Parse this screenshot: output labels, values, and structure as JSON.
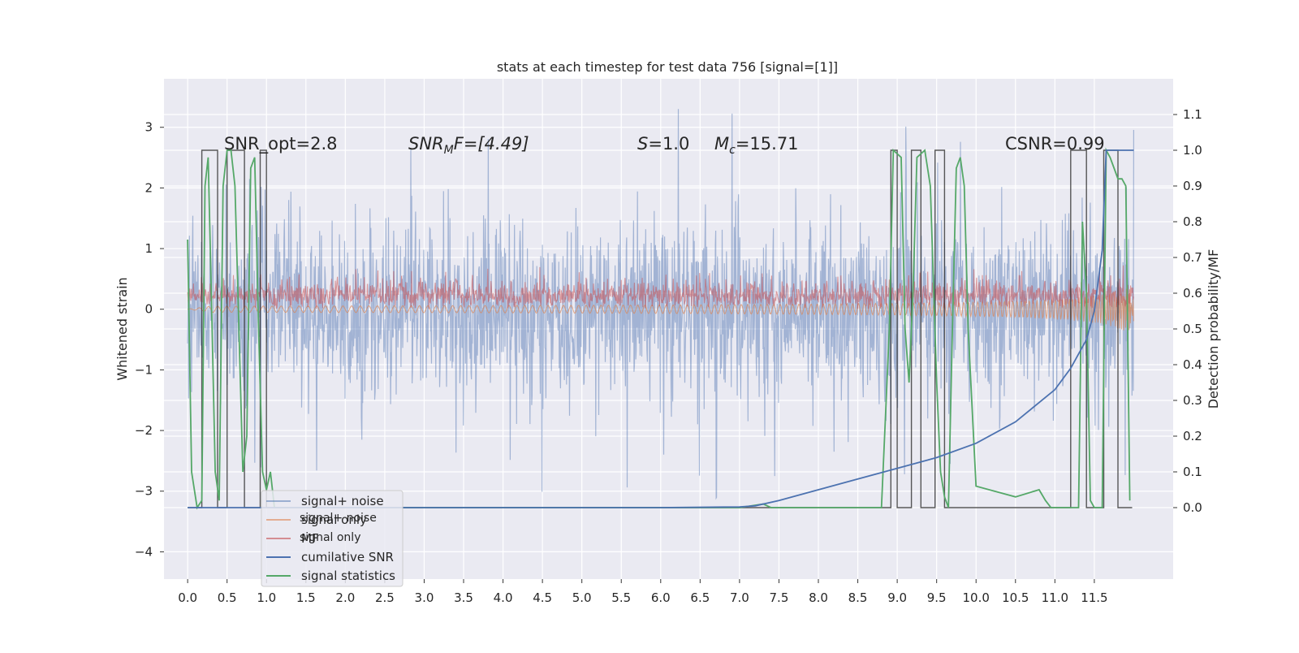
{
  "chart_data": {
    "type": "line",
    "title": "stats at each timestep for test data 756 [signal=[1]]",
    "xlabel": "",
    "ylabel_left": "Whitened strain",
    "ylabel_right": "Detection probability/MF",
    "xlim": [
      -0.3,
      12.5
    ],
    "ylim_left": [
      -4.45,
      3.8
    ],
    "ylim_right": [
      -0.2,
      1.2
    ],
    "x_ticks": [
      "0.0",
      "0.5",
      "1.0",
      "1.5",
      "2.0",
      "2.5",
      "3.0",
      "3.5",
      "4.0",
      "4.5",
      "5.0",
      "5.5",
      "6.0",
      "6.5",
      "7.0",
      "7.5",
      "8.0",
      "8.5",
      "9.0",
      "9.5",
      "10.0",
      "10.5",
      "11.0",
      "11.5"
    ],
    "y_ticks_left": [
      "3",
      "2",
      "1",
      "0",
      "−1",
      "−2",
      "−3",
      "−4"
    ],
    "y_ticks_right": [
      "1.1",
      "1.0",
      "0.9",
      "0.8",
      "0.7",
      "0.6",
      "0.5",
      "0.4",
      "0.3",
      "0.2",
      "0.1",
      "0.0"
    ],
    "grid": true,
    "legend_position": "lower-left",
    "background": "#eaeaf2",
    "annotations": {
      "snr_opt": "SNR_opt=2.8",
      "snr_mf_prefix": "SNR",
      "snr_mf_sub": "M",
      "snr_mf_rest": "F=[4.49]",
      "s_italic": "S",
      "s_value": "=1.0",
      "mc_italic": "M",
      "mc_sub": "c",
      "mc_value": "=15.71",
      "csnr": "CSNR=0.99"
    },
    "series": [
      {
        "name": "signal+ noise",
        "color": "#4c72b0",
        "axis": "left",
        "style": "noisy band",
        "approx_range": [
          -2.3,
          2.6
        ],
        "x_range": [
          0.0,
          12.0
        ]
      },
      {
        "name": "signal only",
        "color": "#dd8452",
        "axis": "left",
        "style": "chirp",
        "x_range": [
          0.0,
          12.0
        ],
        "max_amplitude": 0.35
      },
      {
        "name": "MF",
        "color": "#c44e52",
        "axis": "left",
        "style": "noisy band",
        "approx_range": [
          0.0,
          0.7
        ],
        "x_range": [
          0.0,
          12.0
        ]
      },
      {
        "name": "cumilative SNR",
        "color": "#4c72b0",
        "axis": "right",
        "x": [
          0.0,
          6.0,
          7.0,
          7.2,
          7.5,
          8.0,
          8.5,
          9.0,
          9.5,
          10.0,
          10.5,
          11.0,
          11.2,
          11.4,
          11.5,
          11.6,
          11.65,
          12.0
        ],
        "y": [
          0.0,
          0.0,
          0.002,
          0.005,
          0.02,
          0.05,
          0.08,
          0.11,
          0.14,
          0.18,
          0.24,
          0.33,
          0.39,
          0.47,
          0.55,
          0.72,
          1.0,
          1.0
        ]
      },
      {
        "name": "signal statistics",
        "color": "#55a868",
        "axis": "right",
        "x": [
          0.0,
          0.05,
          0.12,
          0.18,
          0.22,
          0.26,
          0.3,
          0.35,
          0.4,
          0.45,
          0.5,
          0.55,
          0.6,
          0.65,
          0.7,
          0.75,
          0.8,
          0.85,
          0.9,
          0.95,
          1.0,
          1.05,
          1.1,
          1.15,
          1.2,
          1.3,
          2.0,
          3.0,
          4.0,
          5.0,
          6.0,
          7.0,
          7.3,
          7.4,
          8.0,
          8.8,
          8.9,
          8.95,
          9.05,
          9.1,
          9.15,
          9.2,
          9.25,
          9.35,
          9.42,
          9.5,
          9.55,
          9.6,
          9.65,
          9.7,
          9.75,
          9.8,
          9.85,
          9.9,
          10.0,
          10.5,
          10.8,
          10.88,
          10.95,
          11.05,
          11.1,
          11.15,
          11.2,
          11.25,
          11.3,
          11.35,
          11.4,
          11.45,
          11.5,
          11.55,
          11.6,
          11.65,
          11.7,
          11.75,
          11.8,
          11.85,
          11.9,
          11.95
        ],
        "y": [
          0.75,
          0.1,
          0.0,
          0.02,
          0.9,
          0.98,
          0.6,
          0.1,
          0.02,
          0.9,
          1.0,
          1.0,
          0.9,
          0.5,
          0.1,
          0.2,
          0.95,
          0.98,
          0.5,
          0.1,
          0.05,
          0.1,
          0.0,
          0.0,
          0.0,
          0.0,
          0.0,
          0.0,
          0.0,
          0.0,
          0.0,
          0.0,
          0.01,
          0.0,
          0.0,
          0.0,
          0.5,
          1.0,
          0.98,
          0.5,
          0.35,
          0.6,
          0.98,
          1.0,
          0.9,
          0.35,
          0.1,
          0.03,
          0.0,
          0.5,
          0.95,
          0.98,
          0.9,
          0.5,
          0.06,
          0.03,
          0.05,
          0.02,
          0.0,
          0.0,
          0.0,
          0.0,
          0.0,
          0.0,
          0.0,
          0.8,
          0.6,
          0.02,
          0.0,
          0.0,
          0.0,
          1.0,
          0.98,
          0.95,
          0.92,
          0.92,
          0.9,
          0.02
        ]
      },
      {
        "name": "",
        "color": "#2f2f2f",
        "axis": "right",
        "style": "step",
        "x": [
          0.0,
          0.18,
          0.18,
          0.38,
          0.38,
          0.5,
          0.5,
          0.72,
          0.72,
          0.92,
          0.92,
          1.0,
          1.0,
          8.92,
          8.92,
          9.0,
          9.0,
          9.18,
          9.18,
          9.3,
          9.3,
          9.48,
          9.48,
          9.6,
          9.6,
          11.2,
          11.2,
          11.4,
          11.4,
          11.62,
          11.62,
          11.8,
          11.8,
          11.98
        ],
        "y": [
          0.0,
          0.0,
          1.0,
          1.0,
          0.0,
          0.0,
          1.0,
          1.0,
          0.0,
          0.0,
          1.0,
          1.0,
          0.0,
          0.0,
          1.0,
          1.0,
          0.0,
          0.0,
          1.0,
          1.0,
          0.0,
          0.0,
          1.0,
          1.0,
          0.0,
          0.0,
          1.0,
          1.0,
          0.0,
          0.0,
          1.0,
          1.0,
          0.0,
          0.0
        ]
      }
    ],
    "legend": [
      "signal+ noise",
      "signal only",
      "MF",
      "cumilative SNR",
      "signal statistics"
    ],
    "legend_ghost": [
      "signal+ noise",
      "signal only"
    ]
  }
}
